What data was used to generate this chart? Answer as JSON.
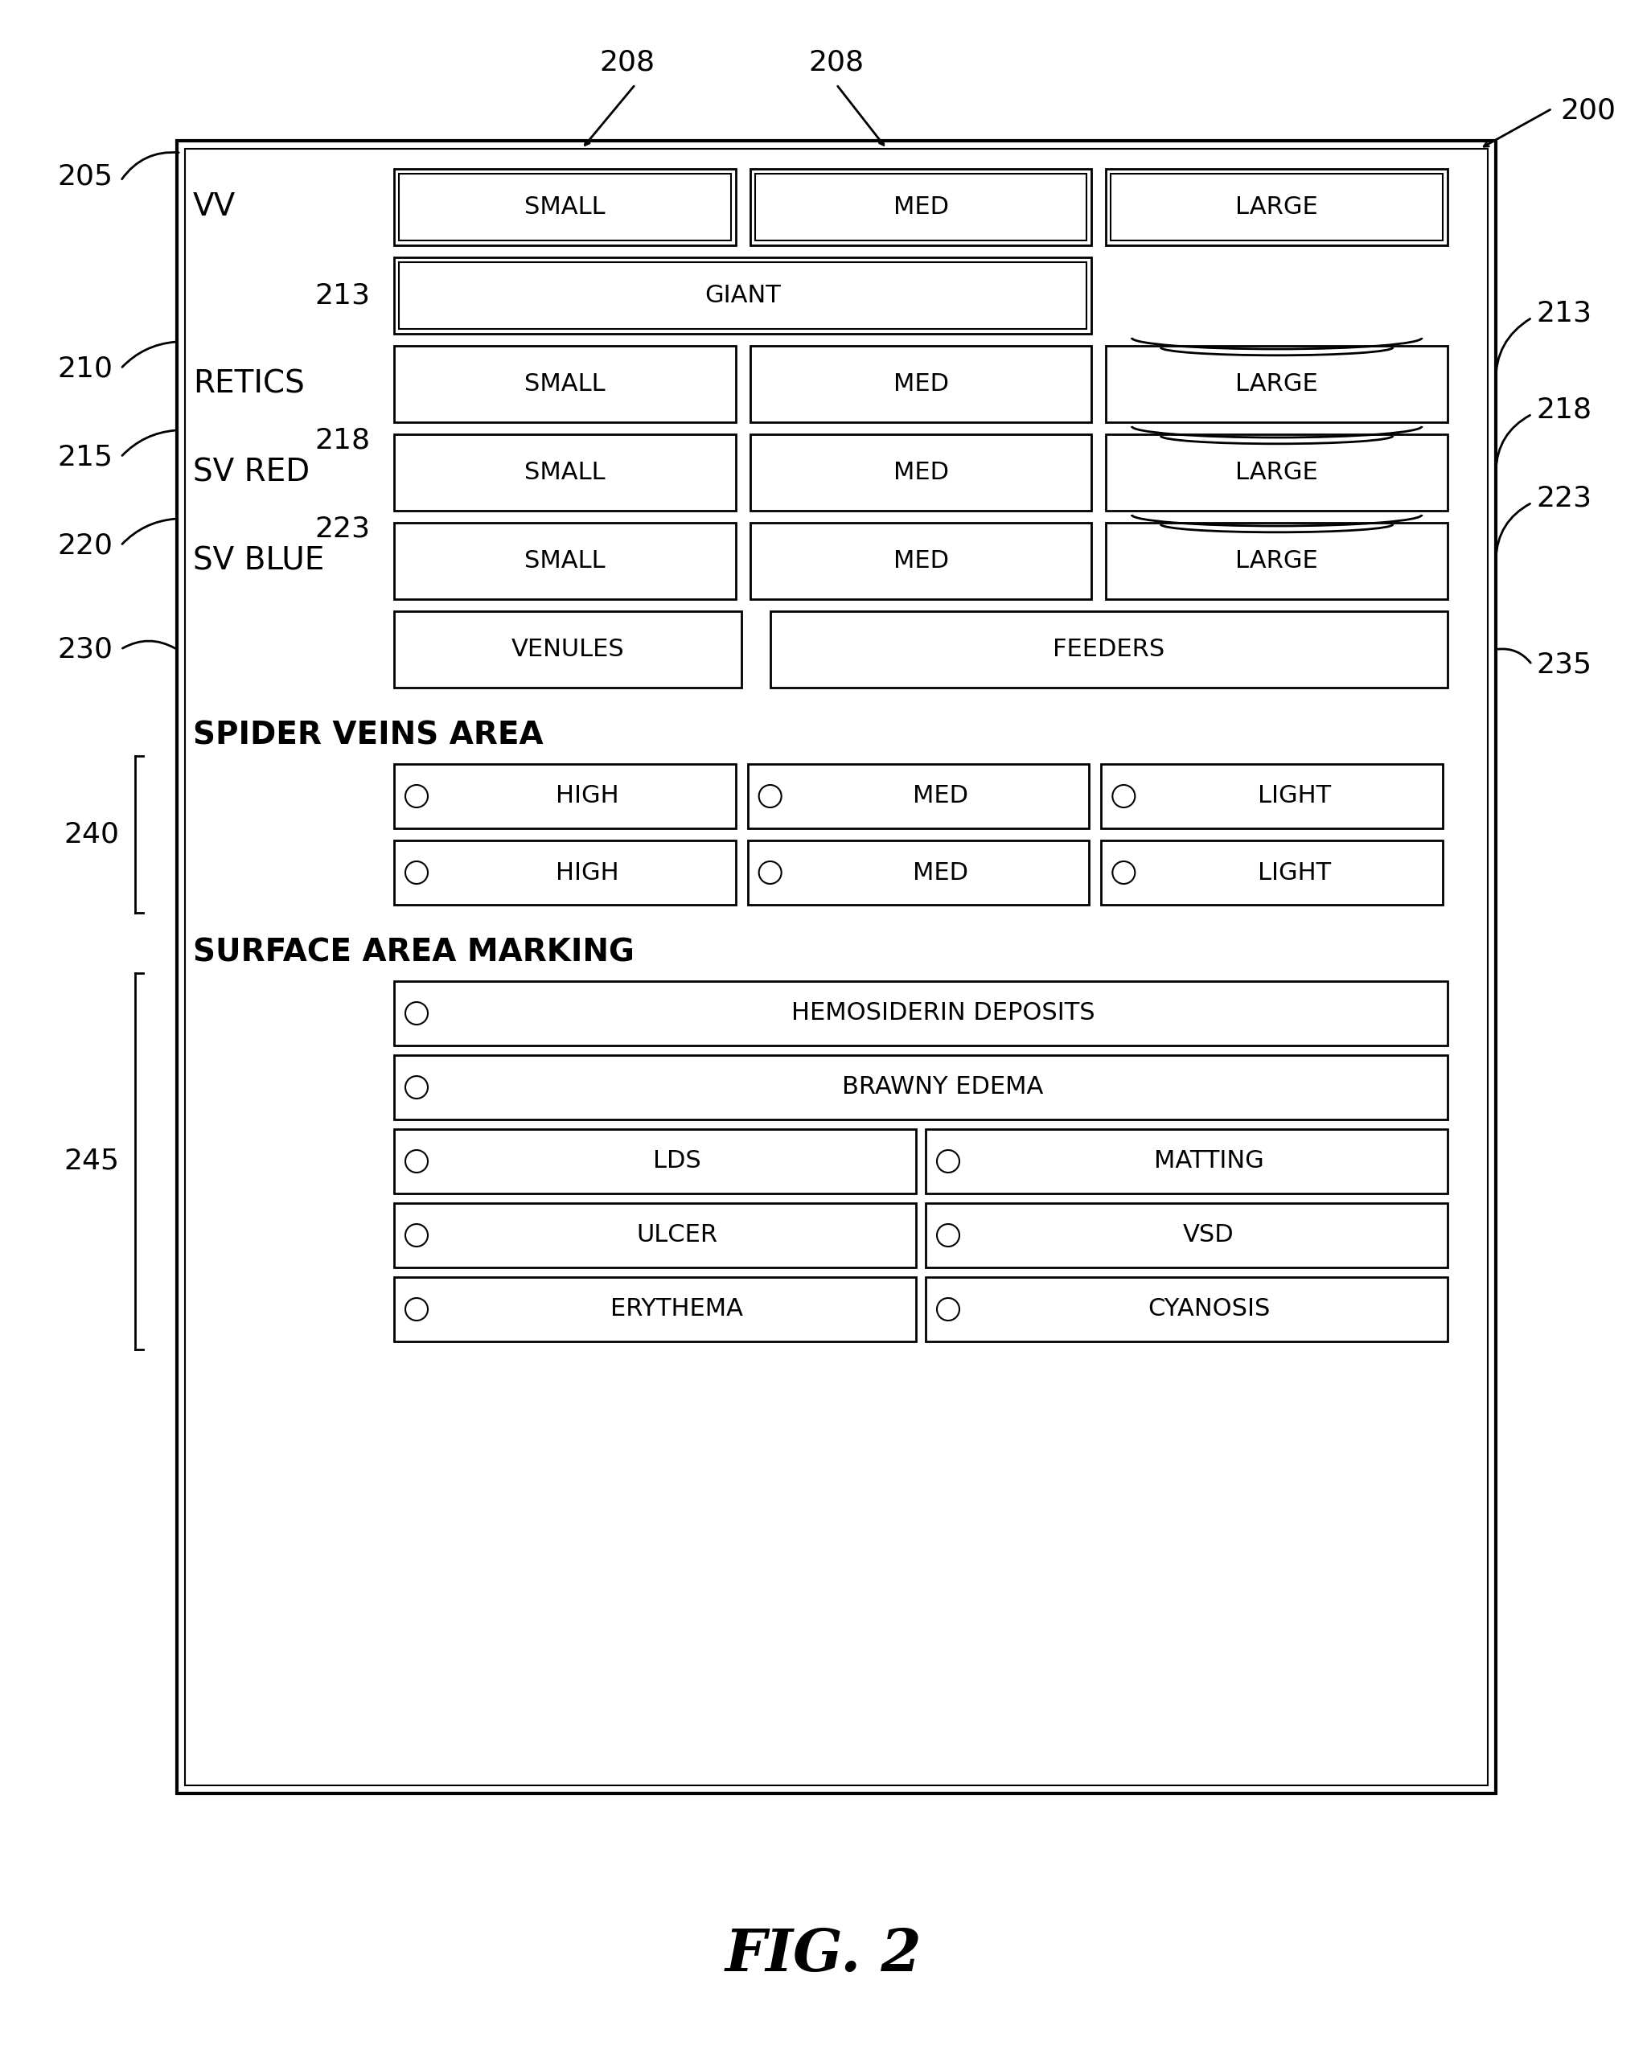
{
  "fig_width": 20.48,
  "fig_height": 25.54,
  "bg_color": "#ffffff",
  "title": "FIG. 2",
  "labels": {
    "200": "200",
    "205": "205",
    "208a": "208",
    "208b": "208",
    "210": "210",
    "213a": "213",
    "213b": "213",
    "215": "215",
    "218a": "218",
    "218b": "218",
    "220": "220",
    "223a": "223",
    "223b": "223",
    "230": "230",
    "235": "235",
    "240": "240",
    "245": "245"
  },
  "section_labels": {
    "VV": "VV",
    "RETICS": "RETICS",
    "SV_RED": "SV RED",
    "SV_BLUE": "SV BLUE"
  },
  "row1_buttons": [
    "SMALL",
    "MED",
    "LARGE"
  ],
  "row_giant": "GIANT",
  "row_retics": [
    "SMALL",
    "MED",
    "LARGE"
  ],
  "row_sv_red": [
    "SMALL",
    "MED",
    "LARGE"
  ],
  "row_sv_blue": [
    "SMALL",
    "MED",
    "LARGE"
  ],
  "row_bottom": [
    "VENULES",
    "FEEDERS"
  ],
  "spider_label": "SPIDER VEINS AREA",
  "spider_row1": [
    "HIGH",
    "MED",
    "LIGHT"
  ],
  "spider_row2": [
    "HIGH",
    "MED",
    "LIGHT"
  ],
  "surface_label": "SURFACE AREA MARKING",
  "surface_full": [
    "HEMOSIDERIN DEPOSITS",
    "BRAWNY EDEMA"
  ],
  "surface_half_left": [
    "LDS",
    "ULCER",
    "ERYTHEMA"
  ],
  "surface_half_right": [
    "MATTING",
    "VSD",
    "CYANOSIS"
  ]
}
